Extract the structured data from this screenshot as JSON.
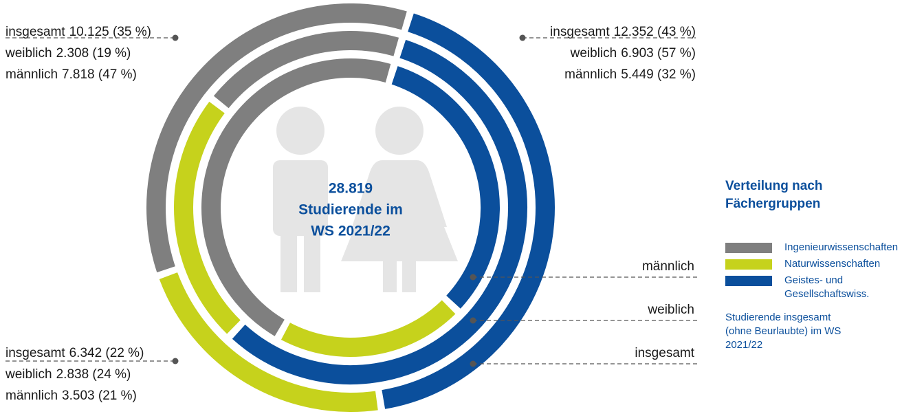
{
  "chart_data": {
    "type": "multi_donut",
    "categories": [
      "Ingenieurwissenschaften",
      "Naturwissenschaften",
      "Geistes- und Gesellschaftswiss."
    ],
    "colors": [
      "#7f7f7f",
      "#c6d21c",
      "#0b4f9c"
    ],
    "series": [
      {
        "name": "insgesamt",
        "values": [
          10125,
          6342,
          12352
        ],
        "value_labels": [
          "10.125 (35 %)",
          "6.342 (22 %)",
          "12.352 (43 %)"
        ]
      },
      {
        "name": "weiblich",
        "values": [
          2308,
          2838,
          6903
        ],
        "value_labels": [
          "2.308 (19 %)",
          "2.838 (24 %)",
          "6.903 (57 %)"
        ]
      },
      {
        "name": "männlich",
        "values": [
          7818,
          3503,
          5449
        ],
        "value_labels": [
          "7.818 (47 %)",
          "3.503 (21 %)",
          "5.449 (32 %)"
        ]
      }
    ],
    "center_text": [
      "28.819",
      "Studierende im",
      "WS 2021/22"
    ],
    "legend_title": "Verteilung nach Fächergruppen",
    "legend_note": "Studierende insgesamt (ohne Be­urlaubte) im WS 2021/22"
  }
}
